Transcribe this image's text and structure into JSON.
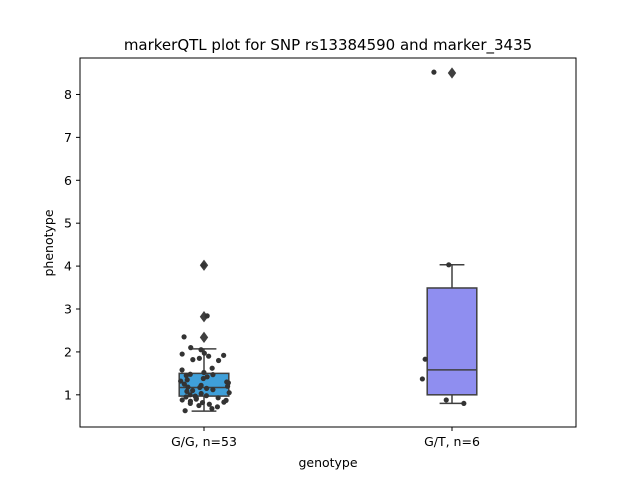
{
  "chart_data": {
    "type": "box",
    "title": "markerQTL plot for SNP rs13384590 and marker_3435",
    "xlabel": "genotype",
    "ylabel": "phenotype",
    "ylim": [
      0.25,
      8.85
    ],
    "yticks": [
      1,
      2,
      3,
      4,
      5,
      6,
      7,
      8
    ],
    "categories": [
      "G/G, n=53",
      "G/T, n=6"
    ],
    "boxes": [
      {
        "category": "G/G, n=53",
        "color": "#3f9fd9",
        "q1": 0.97,
        "median": 1.17,
        "q3": 1.5,
        "whisker_low": 0.62,
        "whisker_high": 2.07,
        "outliers": [
          4.02,
          2.82,
          2.34
        ]
      },
      {
        "category": "G/T, n=6",
        "color": "#8f8ef0",
        "q1": 1.0,
        "median": 1.58,
        "q3": 3.49,
        "whisker_low": 0.8,
        "whisker_high": 4.03,
        "outliers": [
          8.5
        ]
      }
    ],
    "points": [
      {
        "category": 0,
        "values": [
          4.02,
          2.84,
          2.35,
          2.1,
          2.05,
          1.97,
          1.95,
          1.92,
          1.9,
          1.85,
          1.82,
          1.8,
          1.62,
          1.58,
          1.52,
          1.48,
          1.47,
          1.45,
          1.42,
          1.38,
          1.35,
          1.32,
          1.3,
          1.28,
          1.25,
          1.22,
          1.2,
          1.18,
          1.17,
          1.15,
          1.12,
          1.1,
          1.08,
          1.05,
          1.03,
          1.0,
          0.98,
          0.97,
          0.95,
          0.93,
          0.92,
          0.9,
          0.88,
          0.87,
          0.85,
          0.83,
          0.82,
          0.8,
          0.78,
          0.75,
          0.72,
          0.68,
          0.63
        ]
      },
      {
        "category": 1,
        "values": [
          8.52,
          4.03,
          1.83,
          1.37,
          0.88,
          0.8
        ]
      }
    ],
    "grid": false
  }
}
